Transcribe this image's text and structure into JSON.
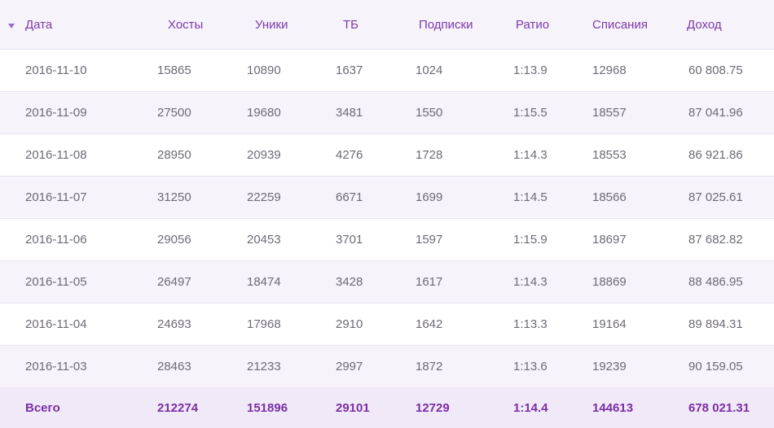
{
  "table": {
    "sort_indicator": "chevron-down",
    "headers": [
      "Дата",
      "Хосты",
      "Уники",
      "ТБ",
      "Подписки",
      "Ратио",
      "Списания",
      "Доход"
    ],
    "rows": [
      [
        "2016-11-10",
        "15865",
        "10890",
        "1637",
        "1024",
        "1:13.9",
        "12968",
        "60 808.75"
      ],
      [
        "2016-11-09",
        "27500",
        "19680",
        "3481",
        "1550",
        "1:15.5",
        "18557",
        "87 041.96"
      ],
      [
        "2016-11-08",
        "28950",
        "20939",
        "4276",
        "1728",
        "1:14.3",
        "18553",
        "86 921.86"
      ],
      [
        "2016-11-07",
        "31250",
        "22259",
        "6671",
        "1699",
        "1:14.5",
        "18566",
        "87 025.61"
      ],
      [
        "2016-11-06",
        "29056",
        "20453",
        "3701",
        "1597",
        "1:15.9",
        "18697",
        "87 682.82"
      ],
      [
        "2016-11-05",
        "26497",
        "18474",
        "3428",
        "1617",
        "1:14.3",
        "18869",
        "88 486.95"
      ],
      [
        "2016-11-04",
        "24693",
        "17968",
        "2910",
        "1642",
        "1:13.3",
        "19164",
        "89 894.31"
      ],
      [
        "2016-11-03",
        "28463",
        "21233",
        "2997",
        "1872",
        "1:13.6",
        "19239",
        "90 159.05"
      ]
    ],
    "total": [
      "Всего",
      "212274",
      "151896",
      "29101",
      "12729",
      "1:14.4",
      "144613",
      "678 021.31"
    ]
  },
  "colors": {
    "accent": "#7c3aa8",
    "row_alt": "#f6f3fb",
    "text": "#6f6a76"
  }
}
